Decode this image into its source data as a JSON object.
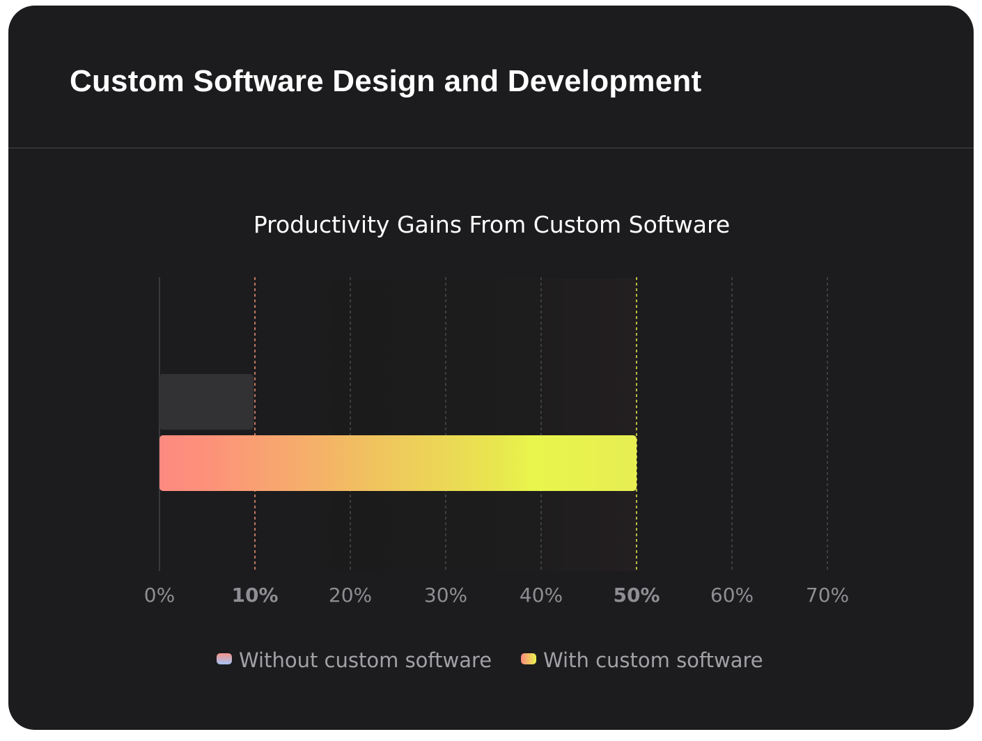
{
  "card": {
    "title": "Custom Software Design and Development"
  },
  "colors": {
    "background": "#1c1c1e",
    "without_bar": "#323234",
    "highlight_without": "#f49479",
    "highlight_with": "#e9f24d",
    "gradient_with": [
      "#fd8d80",
      "#f0b062",
      "#e9f24d"
    ],
    "gradient_without": [
      "#f49479",
      "#a8c3f5"
    ]
  },
  "chart_data": {
    "type": "bar",
    "orientation": "horizontal",
    "title": "Productivity Gains From Custom Software",
    "xlim": [
      0,
      70
    ],
    "ticks": [
      0,
      10,
      20,
      30,
      40,
      50,
      60,
      70
    ],
    "tick_labels": [
      "0%",
      "10%",
      "20%",
      "30%",
      "40%",
      "50%",
      "60%",
      "70%"
    ],
    "highlighted_ticks": {
      "10": "#f49479",
      "50": "#e9f24d"
    },
    "series": [
      {
        "name": "Without custom software",
        "value": 10
      },
      {
        "name": "With custom software",
        "value": 50
      }
    ],
    "legend_position": "bottom-center",
    "grid": "vertical-dashed"
  }
}
